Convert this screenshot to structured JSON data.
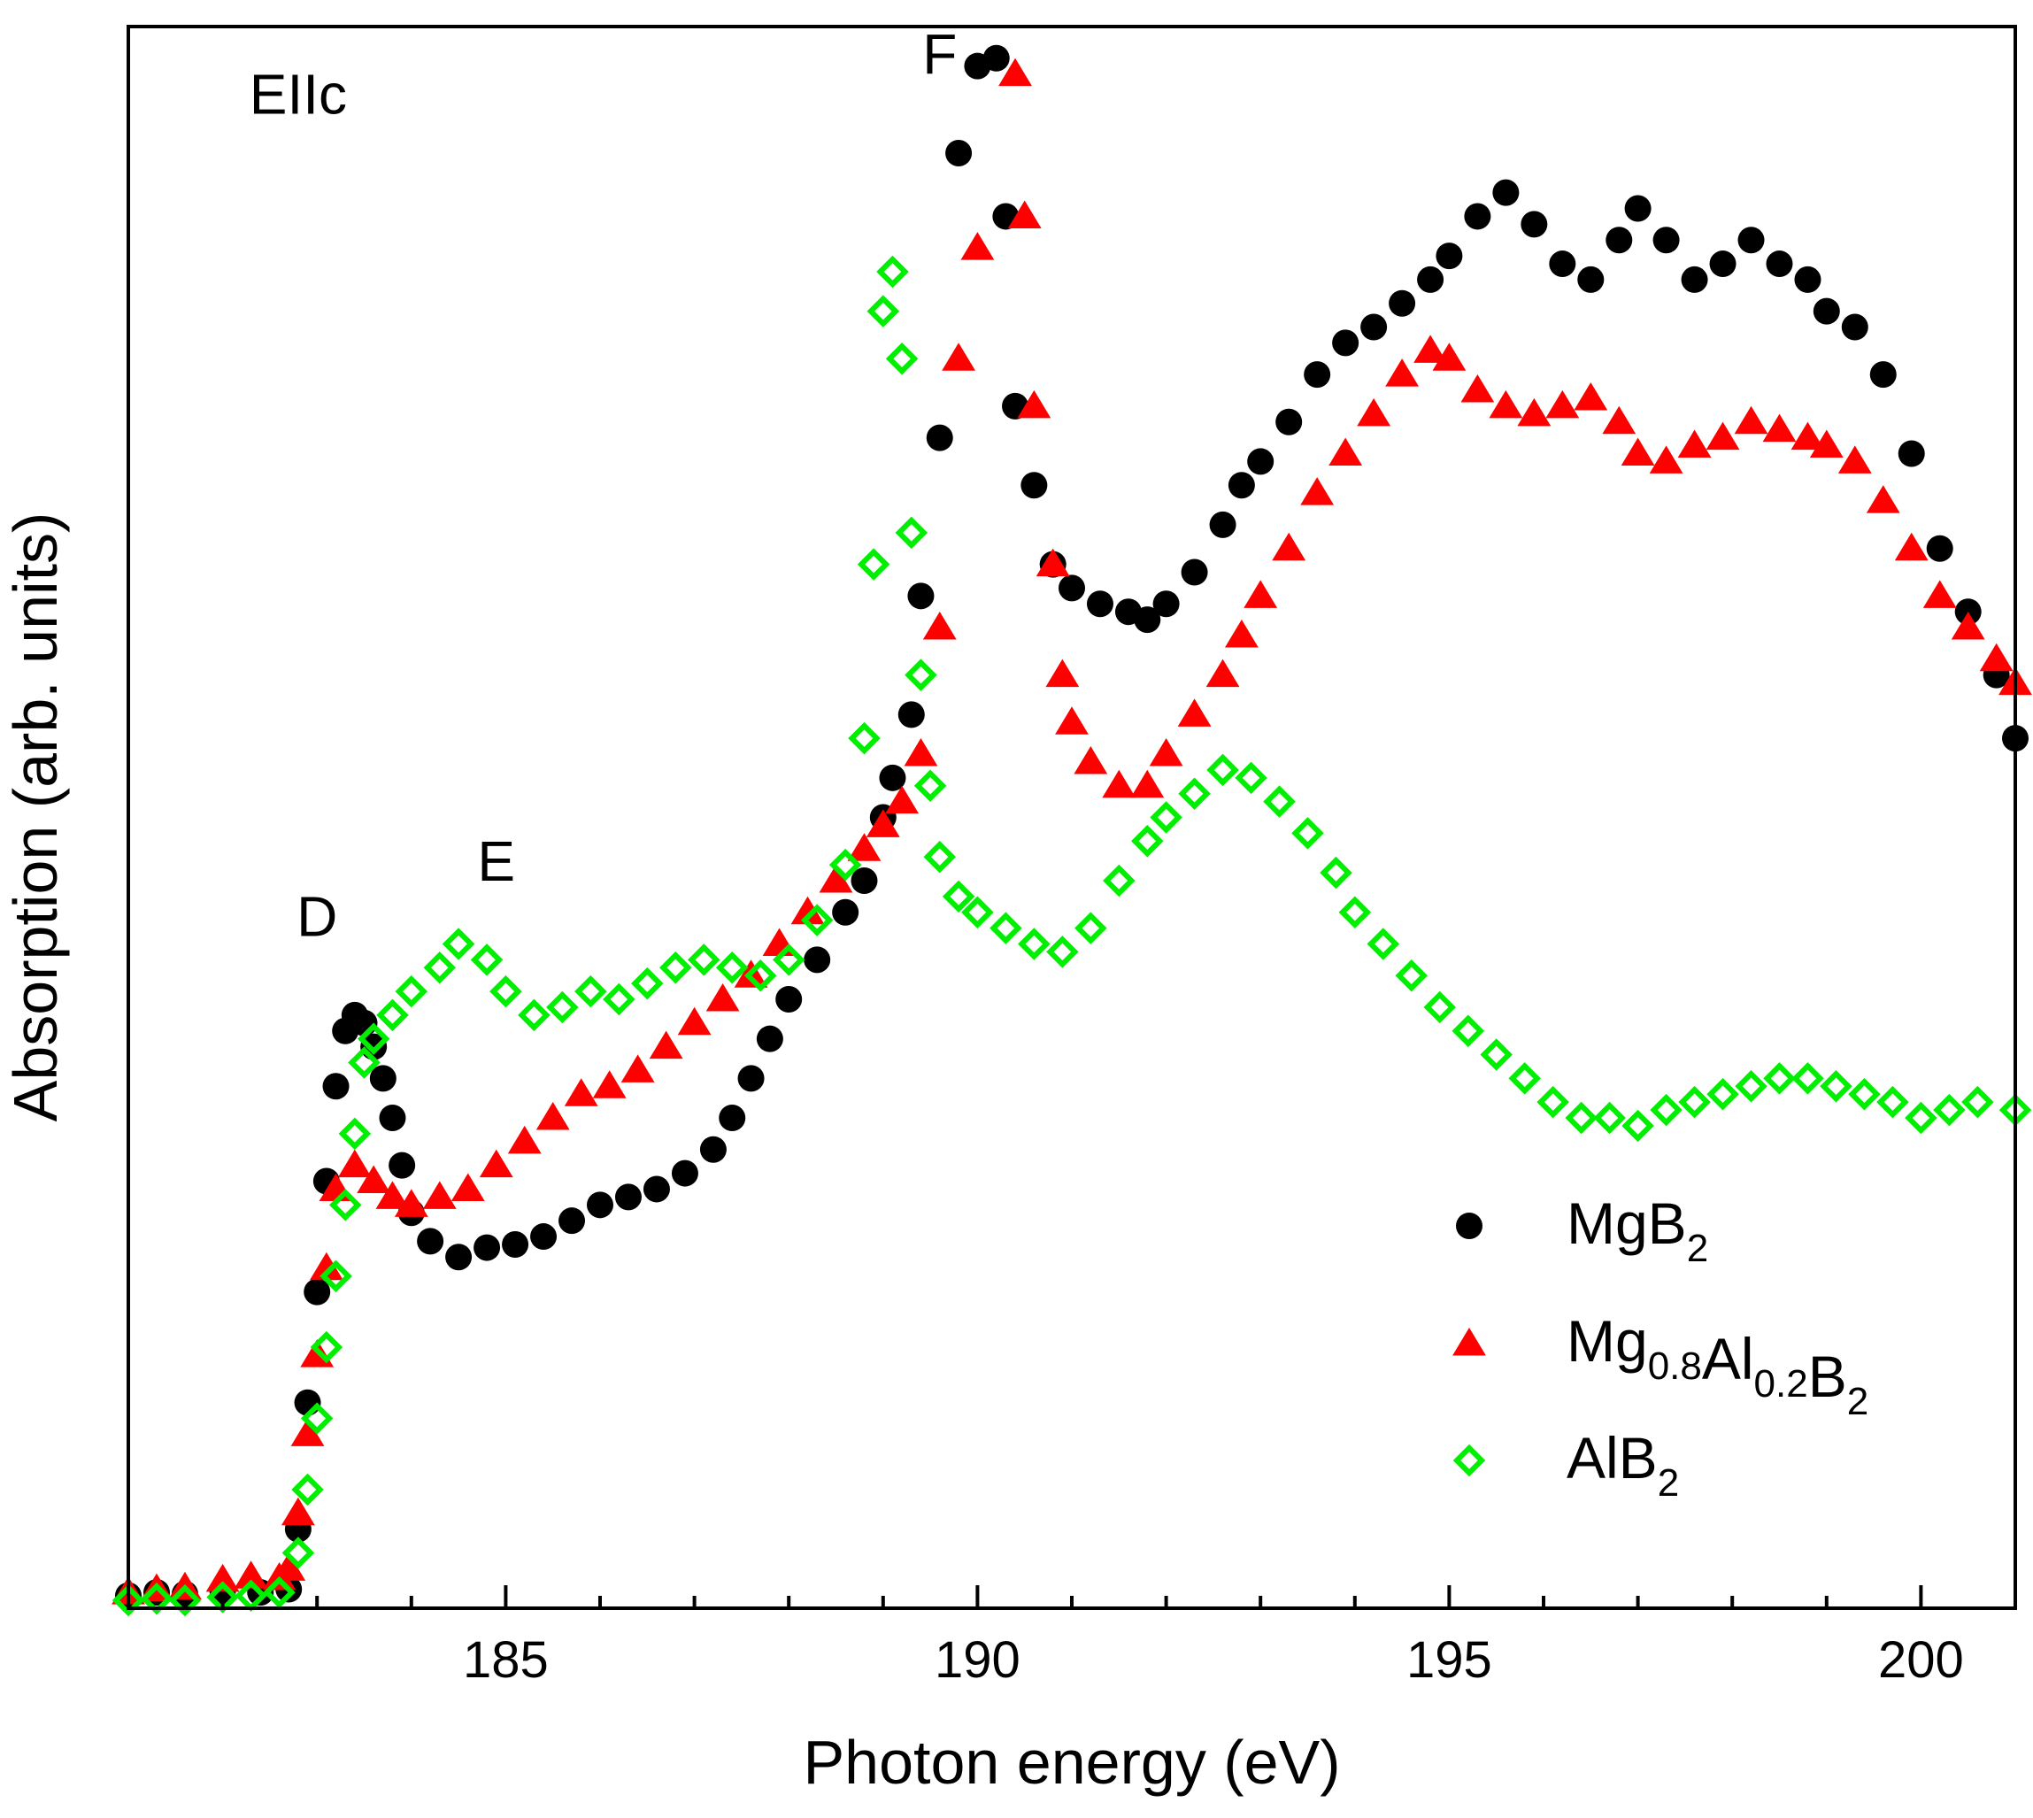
{
  "chart_data": {
    "type": "scatter",
    "title": "",
    "xlabel": "Photon energy (eV)",
    "ylabel": "Absorption (arb. units)",
    "xlim": [
      181,
      201
    ],
    "ylim": [
      0,
      100
    ],
    "xticks": [
      185,
      190,
      195,
      200
    ],
    "xtick_labels": [
      "185",
      "190",
      "195",
      "200"
    ],
    "y_ticklabels_shown": false,
    "grid": false,
    "legend_position": "bottom-right",
    "annotations": [
      {
        "text": "EIIc",
        "x": 182.8,
        "y": 94.5
      },
      {
        "text": "D",
        "x": 183.0,
        "y": 42.5
      },
      {
        "text": "E",
        "x": 184.9,
        "y": 46.0
      },
      {
        "text": "F",
        "x": 189.6,
        "y": 97.0
      }
    ],
    "series": [
      {
        "name": "MgB2",
        "legend_base": "MgB",
        "legend_sub": "2",
        "marker": "circle",
        "color": "#000000",
        "points": [
          [
            181.0,
            0.8
          ],
          [
            181.3,
            1.0
          ],
          [
            181.6,
            0.9
          ],
          [
            182.0,
            1.1
          ],
          [
            182.4,
            1.0
          ],
          [
            182.7,
            1.2
          ],
          [
            182.8,
            5.0
          ],
          [
            182.9,
            13.0
          ],
          [
            183.0,
            20.0
          ],
          [
            183.1,
            27.0
          ],
          [
            183.2,
            33.0
          ],
          [
            183.3,
            36.5
          ],
          [
            183.4,
            37.5
          ],
          [
            183.5,
            37.0
          ],
          [
            183.6,
            35.5
          ],
          [
            183.7,
            33.5
          ],
          [
            183.8,
            31.0
          ],
          [
            183.9,
            28.0
          ],
          [
            184.0,
            25.0
          ],
          [
            184.2,
            23.2
          ],
          [
            184.5,
            22.2
          ],
          [
            184.8,
            22.8
          ],
          [
            185.1,
            23.0
          ],
          [
            185.4,
            23.5
          ],
          [
            185.7,
            24.5
          ],
          [
            186.0,
            25.5
          ],
          [
            186.3,
            26.0
          ],
          [
            186.6,
            26.5
          ],
          [
            186.9,
            27.5
          ],
          [
            187.2,
            29.0
          ],
          [
            187.4,
            31.0
          ],
          [
            187.6,
            33.5
          ],
          [
            187.8,
            36.0
          ],
          [
            188.0,
            38.5
          ],
          [
            188.3,
            41.0
          ],
          [
            188.6,
            44.0
          ],
          [
            188.8,
            46.0
          ],
          [
            189.0,
            50.0
          ],
          [
            189.1,
            52.5
          ],
          [
            189.3,
            56.5
          ],
          [
            189.4,
            64.0
          ],
          [
            189.6,
            74.0
          ],
          [
            189.8,
            92.0
          ],
          [
            190.0,
            97.5
          ],
          [
            190.2,
            98.0
          ],
          [
            190.3,
            88.0
          ],
          [
            190.4,
            76.0
          ],
          [
            190.6,
            71.0
          ],
          [
            190.8,
            66.0
          ],
          [
            191.0,
            64.5
          ],
          [
            191.3,
            63.5
          ],
          [
            191.6,
            63.0
          ],
          [
            191.8,
            62.5
          ],
          [
            192.0,
            63.5
          ],
          [
            192.3,
            65.5
          ],
          [
            192.6,
            68.5
          ],
          [
            192.8,
            71.0
          ],
          [
            193.0,
            72.5
          ],
          [
            193.3,
            75.0
          ],
          [
            193.6,
            78.0
          ],
          [
            193.9,
            80.0
          ],
          [
            194.2,
            81.0
          ],
          [
            194.5,
            82.5
          ],
          [
            194.8,
            84.0
          ],
          [
            195.0,
            85.5
          ],
          [
            195.3,
            88.0
          ],
          [
            195.6,
            89.5
          ],
          [
            195.9,
            87.5
          ],
          [
            196.2,
            85.0
          ],
          [
            196.5,
            84.0
          ],
          [
            196.8,
            86.5
          ],
          [
            197.0,
            88.5
          ],
          [
            197.3,
            86.5
          ],
          [
            197.6,
            84.0
          ],
          [
            197.9,
            85.0
          ],
          [
            198.2,
            86.5
          ],
          [
            198.5,
            85.0
          ],
          [
            198.8,
            84.0
          ],
          [
            199.0,
            82.0
          ],
          [
            199.3,
            81.0
          ],
          [
            199.6,
            78.0
          ],
          [
            199.9,
            73.0
          ],
          [
            200.2,
            67.0
          ],
          [
            200.5,
            63.0
          ],
          [
            200.8,
            59.0
          ],
          [
            201.0,
            55.0
          ]
        ]
      },
      {
        "name": "Mg0.8Al0.2B2",
        "legend_parts": [
          [
            "Mg",
            "0.8"
          ],
          [
            "Al",
            "0.2"
          ],
          [
            "B",
            "2"
          ]
        ],
        "marker": "triangle",
        "color": "#ff0000",
        "points": [
          [
            181.0,
            1.0
          ],
          [
            181.3,
            1.2
          ],
          [
            181.6,
            1.3
          ],
          [
            182.0,
            1.8
          ],
          [
            182.3,
            2.0
          ],
          [
            182.6,
            1.9
          ],
          [
            182.7,
            2.5
          ],
          [
            182.8,
            6.0
          ],
          [
            182.9,
            11.0
          ],
          [
            183.0,
            16.0
          ],
          [
            183.1,
            21.5
          ],
          [
            183.2,
            26.5
          ],
          [
            183.4,
            28.0
          ],
          [
            183.6,
            27.0
          ],
          [
            183.8,
            26.0
          ],
          [
            184.0,
            25.5
          ],
          [
            184.3,
            26.0
          ],
          [
            184.6,
            26.5
          ],
          [
            184.9,
            28.0
          ],
          [
            185.2,
            29.5
          ],
          [
            185.5,
            31.0
          ],
          [
            185.8,
            32.5
          ],
          [
            186.1,
            33.0
          ],
          [
            186.4,
            34.0
          ],
          [
            186.7,
            35.5
          ],
          [
            187.0,
            37.0
          ],
          [
            187.3,
            38.5
          ],
          [
            187.6,
            40.0
          ],
          [
            187.9,
            42.0
          ],
          [
            188.2,
            44.0
          ],
          [
            188.5,
            46.0
          ],
          [
            188.8,
            48.0
          ],
          [
            189.0,
            49.5
          ],
          [
            189.2,
            51.0
          ],
          [
            189.4,
            54.0
          ],
          [
            189.6,
            62.0
          ],
          [
            189.8,
            79.0
          ],
          [
            190.0,
            86.0
          ],
          [
            190.4,
            97.0
          ],
          [
            190.5,
            88.0
          ],
          [
            190.6,
            76.0
          ],
          [
            190.8,
            66.0
          ],
          [
            190.9,
            59.0
          ],
          [
            191.0,
            56.0
          ],
          [
            191.2,
            53.5
          ],
          [
            191.5,
            52.0
          ],
          [
            191.8,
            52.0
          ],
          [
            192.0,
            54.0
          ],
          [
            192.3,
            56.5
          ],
          [
            192.6,
            59.0
          ],
          [
            192.8,
            61.5
          ],
          [
            193.0,
            64.0
          ],
          [
            193.3,
            67.0
          ],
          [
            193.6,
            70.5
          ],
          [
            193.9,
            73.0
          ],
          [
            194.2,
            75.5
          ],
          [
            194.5,
            78.0
          ],
          [
            194.8,
            79.5
          ],
          [
            195.0,
            79.0
          ],
          [
            195.3,
            77.0
          ],
          [
            195.6,
            76.0
          ],
          [
            195.9,
            75.5
          ],
          [
            196.2,
            76.0
          ],
          [
            196.5,
            76.5
          ],
          [
            196.8,
            75.0
          ],
          [
            197.0,
            73.0
          ],
          [
            197.3,
            72.5
          ],
          [
            197.6,
            73.5
          ],
          [
            197.9,
            74.0
          ],
          [
            198.2,
            75.0
          ],
          [
            198.5,
            74.5
          ],
          [
            198.8,
            74.0
          ],
          [
            199.0,
            73.5
          ],
          [
            199.3,
            72.5
          ],
          [
            199.6,
            70.0
          ],
          [
            199.9,
            67.0
          ],
          [
            200.2,
            64.0
          ],
          [
            200.5,
            62.0
          ],
          [
            200.8,
            60.0
          ],
          [
            201.0,
            58.5
          ]
        ]
      },
      {
        "name": "AlB2",
        "legend_base": "AlB",
        "legend_sub": "2",
        "marker": "diamond",
        "color": "#00ee00",
        "points": [
          [
            181.0,
            0.5
          ],
          [
            181.3,
            0.6
          ],
          [
            181.6,
            0.5
          ],
          [
            182.0,
            0.7
          ],
          [
            182.3,
            0.8
          ],
          [
            182.6,
            1.0
          ],
          [
            182.8,
            3.5
          ],
          [
            182.9,
            7.5
          ],
          [
            183.0,
            12.0
          ],
          [
            183.1,
            16.5
          ],
          [
            183.2,
            21.0
          ],
          [
            183.3,
            25.5
          ],
          [
            183.4,
            30.0
          ],
          [
            183.5,
            34.5
          ],
          [
            183.6,
            36.0
          ],
          [
            183.8,
            37.5
          ],
          [
            184.0,
            39.0
          ],
          [
            184.3,
            40.5
          ],
          [
            184.5,
            42.0
          ],
          [
            184.8,
            41.0
          ],
          [
            185.0,
            39.0
          ],
          [
            185.3,
            37.5
          ],
          [
            185.6,
            38.0
          ],
          [
            185.9,
            39.0
          ],
          [
            186.2,
            38.5
          ],
          [
            186.5,
            39.5
          ],
          [
            186.8,
            40.5
          ],
          [
            187.1,
            41.0
          ],
          [
            187.4,
            40.5
          ],
          [
            187.7,
            40.0
          ],
          [
            188.0,
            41.0
          ],
          [
            188.3,
            43.5
          ],
          [
            188.6,
            47.0
          ],
          [
            188.8,
            55.0
          ],
          [
            188.9,
            66.0
          ],
          [
            189.0,
            82.0
          ],
          [
            189.1,
            84.5
          ],
          [
            189.2,
            79.0
          ],
          [
            189.3,
            68.0
          ],
          [
            189.4,
            59.0
          ],
          [
            189.5,
            52.0
          ],
          [
            189.6,
            47.5
          ],
          [
            189.8,
            45.0
          ],
          [
            190.0,
            44.0
          ],
          [
            190.3,
            43.0
          ],
          [
            190.6,
            42.0
          ],
          [
            190.9,
            41.5
          ],
          [
            191.2,
            43.0
          ],
          [
            191.5,
            46.0
          ],
          [
            191.8,
            48.5
          ],
          [
            192.0,
            50.0
          ],
          [
            192.3,
            51.5
          ],
          [
            192.6,
            53.0
          ],
          [
            192.9,
            52.5
          ],
          [
            193.2,
            51.0
          ],
          [
            193.5,
            49.0
          ],
          [
            193.8,
            46.5
          ],
          [
            194.0,
            44.0
          ],
          [
            194.3,
            42.0
          ],
          [
            194.6,
            40.0
          ],
          [
            194.9,
            38.0
          ],
          [
            195.2,
            36.5
          ],
          [
            195.5,
            35.0
          ],
          [
            195.8,
            33.5
          ],
          [
            196.1,
            32.0
          ],
          [
            196.4,
            31.0
          ],
          [
            196.7,
            31.0
          ],
          [
            197.0,
            30.5
          ],
          [
            197.3,
            31.5
          ],
          [
            197.6,
            32.0
          ],
          [
            197.9,
            32.5
          ],
          [
            198.2,
            33.0
          ],
          [
            198.5,
            33.5
          ],
          [
            198.8,
            33.5
          ],
          [
            199.1,
            33.0
          ],
          [
            199.4,
            32.5
          ],
          [
            199.7,
            32.0
          ],
          [
            200.0,
            31.0
          ],
          [
            200.3,
            31.5
          ],
          [
            200.6,
            32.0
          ],
          [
            201.0,
            31.5
          ]
        ]
      }
    ]
  }
}
